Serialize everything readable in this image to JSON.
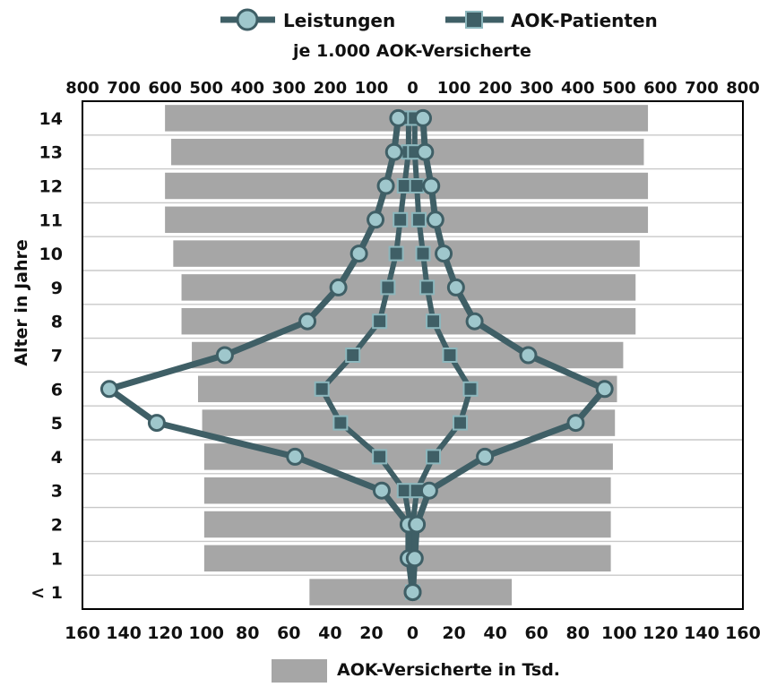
{
  "chart_data": {
    "type": "bar+line",
    "legend": {
      "items": [
        {
          "name": "Leistungen",
          "marker": "circle"
        },
        {
          "name": "AOK-Patienten",
          "marker": "square"
        }
      ],
      "placement": "top-center",
      "bar_legend": "AOK-Versicherte in Tsd.",
      "bar_legend_placement": "bottom-center"
    },
    "subtitle": "je 1.000 AOK-Versicherte",
    "ylabel": "Alter in Jahre",
    "categories": [
      "< 1",
      "1",
      "2",
      "3",
      "4",
      "5",
      "6",
      "7",
      "8",
      "9",
      "10",
      "11",
      "12",
      "13",
      "14"
    ],
    "top_axis": {
      "range": [
        -800,
        800
      ],
      "tick_labels": [
        "800",
        "700",
        "600",
        "500",
        "400",
        "300",
        "200",
        "100",
        "0",
        "100",
        "200",
        "300",
        "400",
        "500",
        "600",
        "700",
        "800"
      ]
    },
    "bottom_axis": {
      "range": [
        -160,
        160
      ],
      "tick_labels": [
        "160",
        "140",
        "120",
        "100",
        "80",
        "60",
        "40",
        "20",
        "0",
        "20",
        "40",
        "60",
        "80",
        "100",
        "120",
        "140",
        "160"
      ]
    },
    "bars": {
      "name": "AOK-Versicherte in Tsd.",
      "unit": "Tsd.",
      "left": [
        50,
        101,
        101,
        101,
        101,
        102,
        104,
        107,
        112,
        112,
        116,
        120,
        120,
        117,
        120
      ],
      "right": [
        48,
        96,
        96,
        96,
        97,
        98,
        99,
        102,
        108,
        108,
        110,
        114,
        114,
        112,
        114
      ]
    },
    "series": [
      {
        "name": "Leistungen",
        "left": [
          0,
          2,
          2,
          15,
          57,
          124,
          147,
          91,
          51,
          36,
          26,
          18,
          13,
          9,
          7
        ],
        "right": [
          0,
          1,
          2,
          8,
          35,
          79,
          93,
          56,
          30,
          21,
          15,
          11,
          9,
          6,
          5
        ]
      },
      {
        "name": "AOK-Patienten",
        "left": [
          0,
          1,
          1,
          4,
          16,
          35,
          44,
          29,
          16,
          12,
          8,
          6,
          4,
          2,
          2
        ],
        "right": [
          0,
          0,
          0,
          2,
          10,
          23,
          28,
          18,
          10,
          7,
          5,
          3,
          2,
          1,
          1
        ]
      }
    ],
    "grid": "horizontal",
    "colors": {
      "bar": "#a6a6a6",
      "line": "#3f5f66",
      "circle_fill": "#9fc7cc",
      "square_fill": "#3f5f66",
      "square_stroke": "#8cb7bd",
      "frame": "#000000",
      "grid": "#c8c8c8"
    }
  }
}
